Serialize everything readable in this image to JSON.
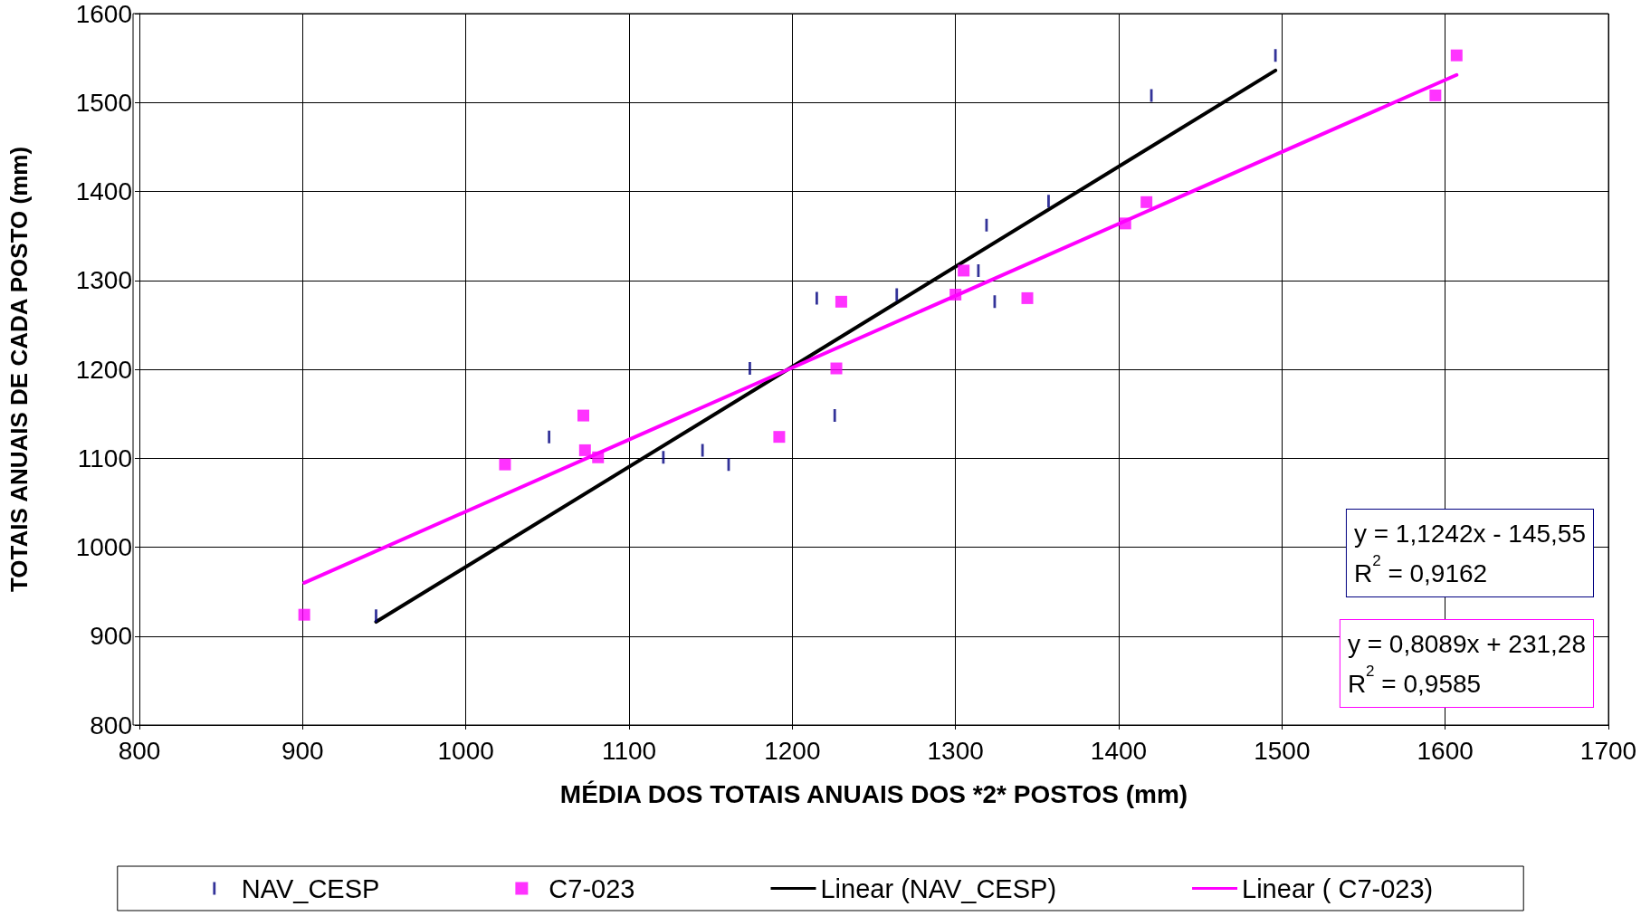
{
  "chart_data": {
    "type": "scatter",
    "xlabel": "MÉDIA DOS TOTAIS ANUAIS DOS *2* POSTOS (mm)",
    "ylabel": "TOTAIS ANUAIS DE CADA POSTO (mm)",
    "xlim": [
      800,
      1700
    ],
    "xticks": [
      800,
      900,
      1000,
      1100,
      1200,
      1300,
      1400,
      1500,
      1600,
      1700
    ],
    "ylim": [
      800,
      1600
    ],
    "yticks": [
      800,
      900,
      1000,
      1100,
      1200,
      1300,
      1400,
      1500,
      1600
    ],
    "grid": true,
    "legend": "bottom",
    "series": [
      {
        "name": "NAV_CESP",
        "type": "scatter",
        "color": "#000080",
        "x": [
          945,
          1051,
          1121,
          1145,
          1161,
          1174,
          1215,
          1226,
          1264,
          1314,
          1319,
          1324,
          1357,
          1420,
          1496
        ],
        "values": [
          923,
          1124,
          1101,
          1109,
          1093,
          1201,
          1280,
          1148,
          1284,
          1311,
          1362,
          1276,
          1389,
          1508,
          1553
        ]
      },
      {
        "name": "C7-023",
        "type": "scatter",
        "color": "#ff00ff",
        "marker": "square",
        "x": [
          901,
          1024,
          1072,
          1073,
          1081,
          1192,
          1227,
          1230,
          1300,
          1305,
          1344,
          1404,
          1417,
          1594,
          1607
        ],
        "values": [
          924,
          1093,
          1148,
          1109,
          1101,
          1124,
          1201,
          1276,
          1284,
          1311,
          1280,
          1364,
          1388,
          1508,
          1553
        ]
      },
      {
        "name": "Linear (NAV_CESP)",
        "type": "line",
        "color": "#000000",
        "x": [
          945,
          1496
        ],
        "values": [
          916,
          1536
        ]
      },
      {
        "name": "Linear ( C7-023)",
        "type": "line",
        "color": "#ff00ff",
        "x": [
          901,
          1607
        ],
        "values": [
          960,
          1531
        ]
      }
    ],
    "annotations": [
      "y = 1,1242x - 145,55\nR$^{2}$ = 0,9162",
      "y = 0,8089x + 231,28\nR$^{2}$ = 0,9585"
    ]
  }
}
